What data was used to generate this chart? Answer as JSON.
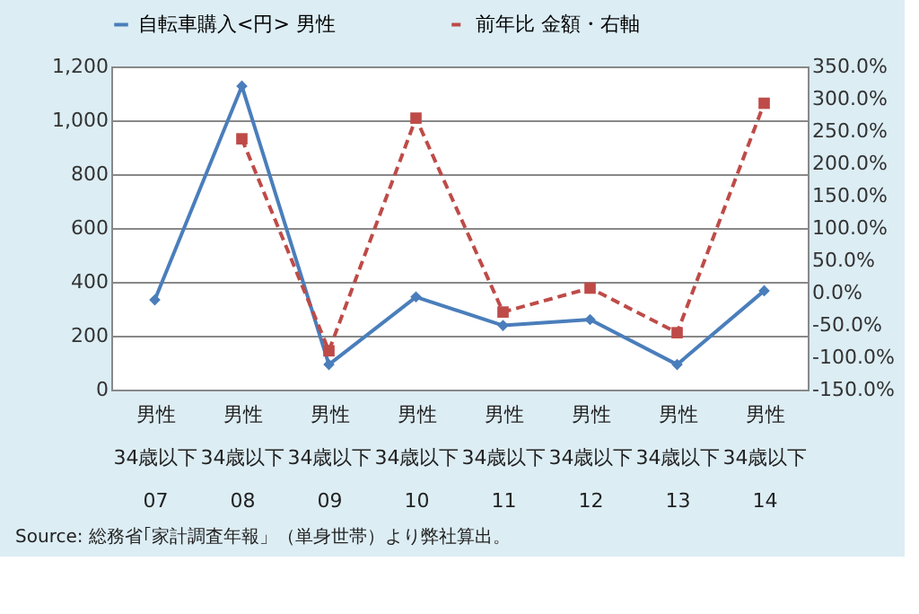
{
  "chart_data": {
    "type": "line",
    "categories": [
      "男性\n34歳以下\n07",
      "男性\n34歳以下\n08",
      "男性\n34歳以下\n09",
      "男性\n34歳以下\n10",
      "男性\n34歳以下\n11",
      "男性\n34歳以下\n12",
      "男性\n34歳以下\n13",
      "男性\n34歳以下\n14"
    ],
    "series": [
      {
        "name": "自転車購入<円> 男性",
        "color": "#4a7ebb",
        "marker": "diamond",
        "line_style": "solid",
        "values": [
          333,
          1127,
          93,
          344,
          238,
          260,
          93,
          367
        ]
      },
      {
        "name": "前年比 金額・右軸",
        "color": "#be4b48",
        "marker": "square",
        "line_style": "dashed",
        "axis": "y2",
        "values": [
          null,
          238,
          -90,
          270,
          -30,
          7,
          -62,
          293
        ]
      }
    ],
    "ylim": [
      0,
      1200
    ],
    "yticks": [
      0,
      200,
      400,
      600,
      800,
      {
        "value": 1000,
        "label": "1,000"
      },
      {
        "value": 1200,
        "label": "1,200"
      }
    ],
    "y2lim": [
      -150,
      350
    ],
    "y2ticks": [
      {
        "value": -150,
        "label": "-150.0%"
      },
      {
        "value": -100,
        "label": "-100.0%"
      },
      {
        "value": -50,
        "label": "-50.0%"
      },
      {
        "value": 0,
        "label": "0.0%"
      },
      {
        "value": 50,
        "label": "50.0%"
      },
      {
        "value": 100,
        "label": "100.0%"
      },
      {
        "value": 150,
        "label": "150.0%"
      },
      {
        "value": 200,
        "label": "200.0%"
      },
      {
        "value": 250,
        "label": "250.0%"
      },
      {
        "value": 300,
        "label": "300.0%"
      },
      {
        "value": 350,
        "label": "350.0%"
      }
    ],
    "grid": "y",
    "legend": "top",
    "annotations": [
      "Source: 総務省｢家計調査年報」（単身世帯）より弊社算出。"
    ]
  }
}
